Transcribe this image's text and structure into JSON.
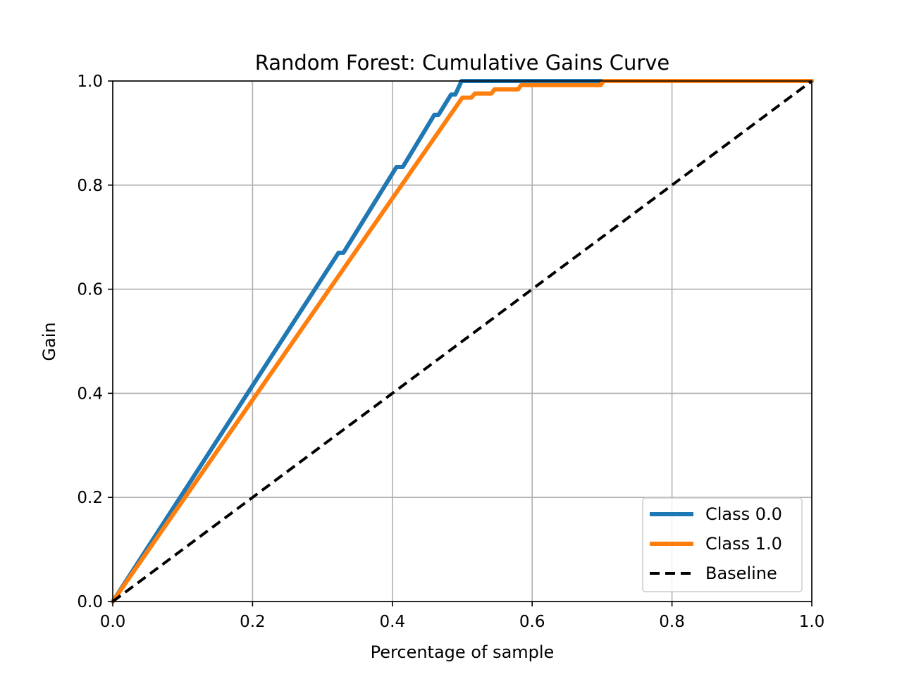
{
  "chart_data": {
    "type": "line",
    "title": "Random Forest: Cumulative Gains Curve",
    "xlabel": "Percentage of sample",
    "ylabel": "Gain",
    "xlim": [
      0.0,
      1.0
    ],
    "ylim": [
      0.0,
      1.0
    ],
    "grid": true,
    "legend_position": "lower-right",
    "x_ticks": [
      "0.0",
      "0.2",
      "0.4",
      "0.6",
      "0.8",
      "1.0"
    ],
    "y_ticks": [
      "0.0",
      "0.2",
      "0.4",
      "0.6",
      "0.8",
      "1.0"
    ],
    "series": [
      {
        "name": "Class 0.0",
        "color": "#1f77b4",
        "style": "solid",
        "points": [
          [
            0.0,
            0.0
          ],
          [
            0.323,
            0.67
          ],
          [
            0.33,
            0.67
          ],
          [
            0.406,
            0.835
          ],
          [
            0.415,
            0.835
          ],
          [
            0.46,
            0.935
          ],
          [
            0.466,
            0.935
          ],
          [
            0.484,
            0.974
          ],
          [
            0.49,
            0.974
          ],
          [
            0.499,
            1.0
          ],
          [
            1.0,
            1.0
          ]
        ]
      },
      {
        "name": "Class 1.0",
        "color": "#ff7f0e",
        "style": "solid",
        "points": [
          [
            0.0,
            0.0
          ],
          [
            0.5,
            0.968
          ],
          [
            0.513,
            0.968
          ],
          [
            0.518,
            0.976
          ],
          [
            0.542,
            0.976
          ],
          [
            0.546,
            0.984
          ],
          [
            0.58,
            0.984
          ],
          [
            0.584,
            0.992
          ],
          [
            0.698,
            0.992
          ],
          [
            0.702,
            1.0
          ],
          [
            1.0,
            1.0
          ]
        ]
      },
      {
        "name": "Baseline",
        "color": "#000000",
        "style": "dashed",
        "points": [
          [
            0.0,
            0.0
          ],
          [
            1.0,
            1.0
          ]
        ]
      }
    ]
  }
}
